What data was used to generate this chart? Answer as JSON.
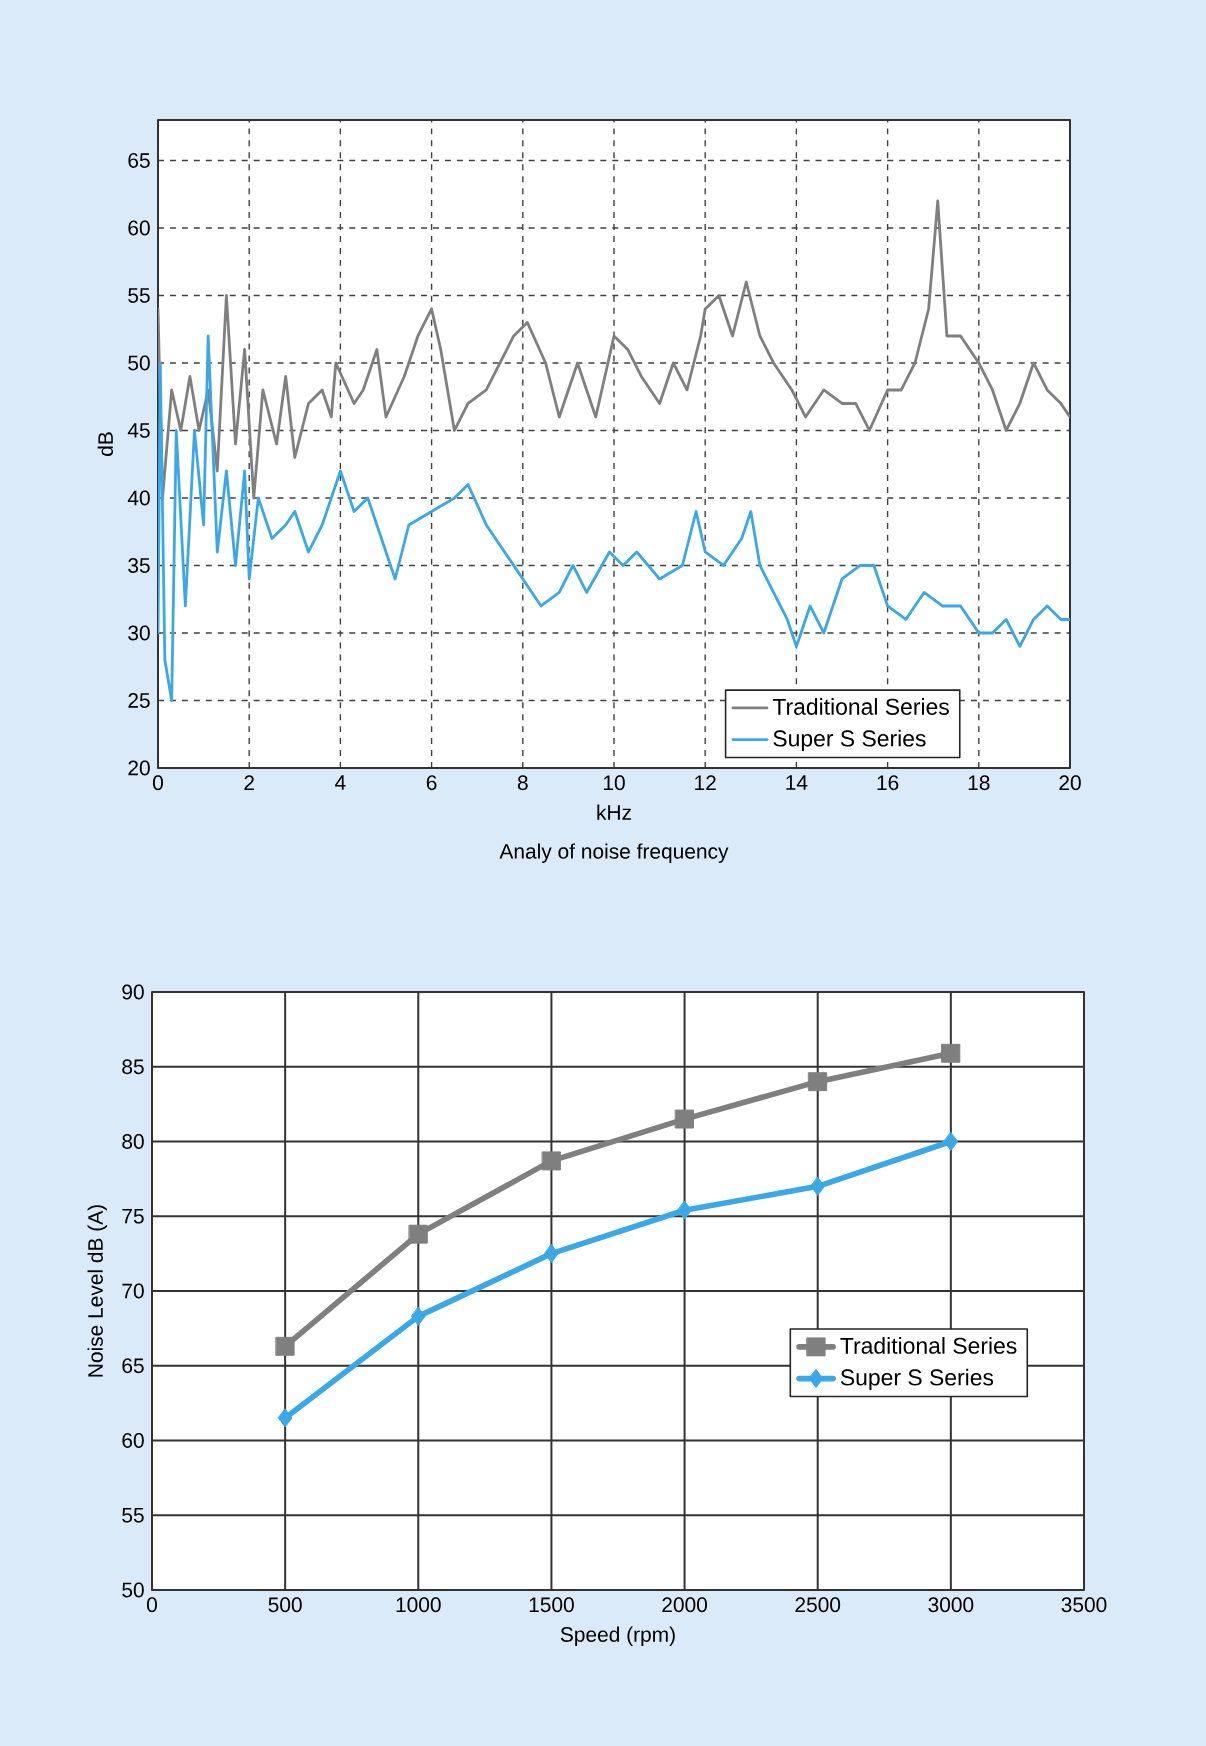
{
  "chart_data": [
    {
      "type": "line",
      "title": "Analy of noise frequency",
      "xlabel": "kHz",
      "ylabel": "dB",
      "xlim": [
        0,
        20
      ],
      "ylim": [
        20,
        68
      ],
      "xticks": [
        0,
        2,
        4,
        6,
        8,
        10,
        12,
        14,
        16,
        18,
        20
      ],
      "yticks": [
        20,
        25,
        30,
        35,
        40,
        45,
        50,
        55,
        60,
        65
      ],
      "grid": true,
      "legend": "bottom right",
      "line_style": "solid",
      "series": [
        {
          "name": "Traditional Series",
          "color": "#7f7f7f",
          "x": [
            0,
            0.1,
            0.3,
            0.5,
            0.7,
            0.9,
            1.1,
            1.3,
            1.5,
            1.7,
            1.9,
            2.1,
            2.3,
            2.6,
            2.8,
            3.0,
            3.3,
            3.6,
            3.8,
            3.9,
            4.3,
            4.5,
            4.8,
            5.0,
            5.4,
            5.7,
            6.0,
            6.2,
            6.5,
            6.8,
            7.2,
            7.5,
            7.8,
            8.1,
            8.5,
            8.8,
            9.2,
            9.6,
            10.0,
            10.3,
            10.6,
            11.0,
            11.3,
            11.6,
            11.9,
            12.0,
            12.3,
            12.6,
            12.9,
            13.2,
            13.5,
            13.9,
            14.2,
            14.6,
            15.0,
            15.3,
            15.6,
            16.0,
            16.3,
            16.6,
            16.9,
            17.1,
            17.3,
            17.6,
            18.0,
            18.3,
            18.6,
            18.9,
            19.2,
            19.5,
            19.8,
            20
          ],
          "values": [
            54,
            40,
            48,
            45,
            49,
            45,
            48,
            42,
            55,
            44,
            51,
            40,
            48,
            44,
            49,
            43,
            47,
            48,
            46,
            50,
            47,
            48,
            51,
            46,
            49,
            52,
            54,
            51,
            45,
            47,
            48,
            50,
            52,
            53,
            50,
            46,
            50,
            46,
            52,
            51,
            49,
            47,
            50,
            48,
            52,
            54,
            55,
            52,
            56,
            52,
            50,
            48,
            46,
            48,
            47,
            47,
            45,
            48,
            48,
            50,
            54,
            62,
            52,
            52,
            50,
            48,
            45,
            47,
            50,
            48,
            47,
            46
          ]
        },
        {
          "name": "Super S Series",
          "color": "#3aa8e6",
          "x": [
            0,
            0.05,
            0.15,
            0.3,
            0.4,
            0.6,
            0.8,
            1.0,
            1.1,
            1.3,
            1.5,
            1.7,
            1.9,
            2.0,
            2.2,
            2.5,
            2.8,
            3.0,
            3.3,
            3.6,
            4.0,
            4.3,
            4.6,
            4.9,
            5.2,
            5.5,
            6.0,
            6.5,
            6.8,
            7.2,
            7.6,
            8.0,
            8.4,
            8.8,
            9.1,
            9.4,
            9.9,
            10.2,
            10.5,
            11.0,
            11.5,
            11.8,
            12.0,
            12.4,
            12.8,
            13.0,
            13.2,
            13.5,
            13.8,
            14.0,
            14.3,
            14.6,
            15.0,
            15.4,
            15.7,
            16.0,
            16.4,
            16.8,
            17.2,
            17.6,
            18.0,
            18.3,
            18.6,
            18.9,
            19.2,
            19.5,
            19.8,
            20
          ],
          "values": [
            30,
            50,
            28,
            25,
            45,
            32,
            45,
            38,
            52,
            36,
            42,
            35,
            42,
            34,
            40,
            37,
            38,
            39,
            36,
            38,
            42,
            39,
            40,
            37,
            34,
            38,
            39,
            40,
            41,
            38,
            36,
            34,
            32,
            33,
            35,
            33,
            36,
            35,
            36,
            34,
            35,
            39,
            36,
            35,
            37,
            39,
            35,
            33,
            31,
            29,
            32,
            30,
            34,
            35,
            35,
            32,
            31,
            33,
            32,
            32,
            30,
            30,
            31,
            29,
            31,
            32,
            31,
            31
          ]
        }
      ]
    },
    {
      "type": "line",
      "xlabel": "Speed (rpm)",
      "ylabel": "Noise Level dB (A)",
      "x": [
        500,
        1000,
        1500,
        2000,
        2500,
        3000
      ],
      "xlim": [
        0,
        3500
      ],
      "ylim": [
        50,
        90
      ],
      "xticks": [
        0,
        500,
        1000,
        1500,
        2000,
        2500,
        3000,
        3500
      ],
      "yticks": [
        50,
        55,
        60,
        65,
        70,
        75,
        80,
        85,
        90
      ],
      "grid": true,
      "legend": "right",
      "line_style": "solid",
      "series": [
        {
          "name": "Traditional Series",
          "color": "#7f7f7f",
          "marker": "square",
          "values": [
            66.3,
            73.8,
            78.7,
            81.5,
            84,
            85.9
          ]
        },
        {
          "name": "Super S Series",
          "color": "#3aa8e6",
          "marker": "diamond",
          "values": [
            61.5,
            68.3,
            72.5,
            75.4,
            77,
            80
          ]
        }
      ]
    }
  ]
}
